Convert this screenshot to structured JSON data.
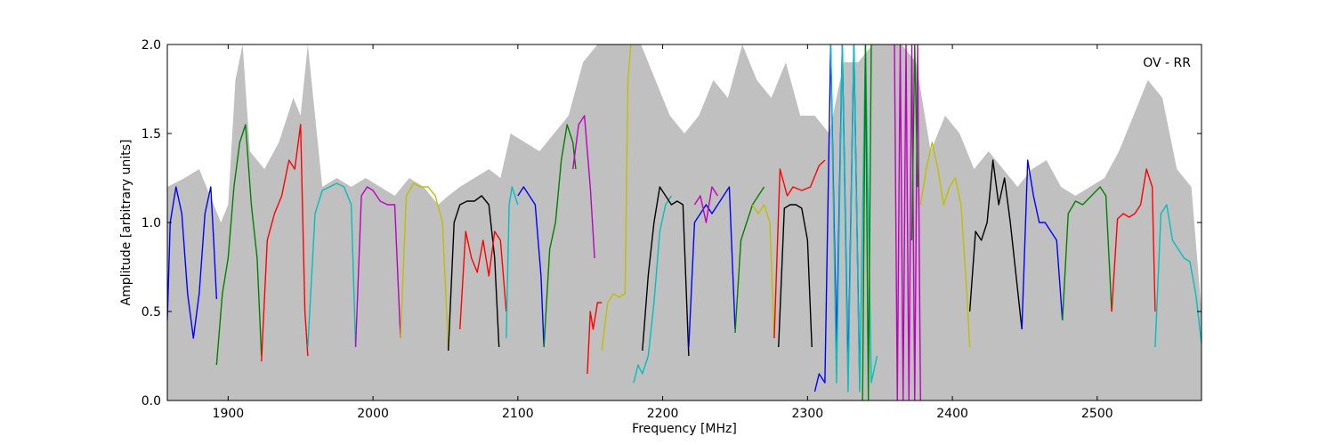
{
  "chart_data": {
    "type": "line",
    "title": "",
    "annotation": "OV - RR",
    "xlabel": "Frequency [MHz]",
    "ylabel": "Amplitude [arbitrary units]",
    "xlim": [
      1858,
      2572
    ],
    "ylim": [
      0.0,
      2.0
    ],
    "x_ticks": [
      1900,
      2000,
      2100,
      2200,
      2300,
      2400,
      2500
    ],
    "x_tick_labels": [
      "1900",
      "2000",
      "2100",
      "2200",
      "2300",
      "2400",
      "2500"
    ],
    "y_ticks": [
      0.0,
      0.5,
      1.0,
      1.5,
      2.0
    ],
    "y_tick_labels": [
      "0.0",
      "0.5",
      "1.0",
      "1.5",
      "2.0"
    ],
    "grid": false,
    "colors": {
      "envelope": "#c0c0c0",
      "blue": "#0000ff",
      "green": "#008000",
      "red": "#ff0000",
      "cyan": "#00bfbf",
      "magenta": "#bf00bf",
      "yellow": "#bfbf00",
      "black": "#000000"
    },
    "envelope": {
      "x": [
        1858,
        1870,
        1880,
        1895,
        1900,
        1905,
        1910,
        1915,
        1925,
        1935,
        1945,
        1950,
        1955,
        1965,
        1975,
        1985,
        1995,
        2005,
        2015,
        2025,
        2035,
        2045,
        2052,
        2060,
        2070,
        2080,
        2088,
        2095,
        2105,
        2115,
        2125,
        2135,
        2145,
        2155,
        2165,
        2175,
        2185,
        2195,
        2205,
        2215,
        2225,
        2235,
        2245,
        2255,
        2265,
        2275,
        2285,
        2295,
        2305,
        2315,
        2325,
        2335,
        2345,
        2355,
        2365,
        2375,
        2385,
        2395,
        2405,
        2415,
        2425,
        2435,
        2445,
        2455,
        2465,
        2475,
        2485,
        2495,
        2505,
        2515,
        2525,
        2535,
        2545,
        2555,
        2565,
        2572
      ],
      "y": [
        1.2,
        1.25,
        1.3,
        1.0,
        1.1,
        1.8,
        2.0,
        1.4,
        1.3,
        1.45,
        1.7,
        1.6,
        2.0,
        1.2,
        1.25,
        1.2,
        1.25,
        1.2,
        1.15,
        1.25,
        1.2,
        1.1,
        1.15,
        1.2,
        1.25,
        1.3,
        1.25,
        1.5,
        1.45,
        1.4,
        1.5,
        1.6,
        1.9,
        2.0,
        2.0,
        2.0,
        2.0,
        1.8,
        1.6,
        1.5,
        1.6,
        1.8,
        1.7,
        2.0,
        1.8,
        1.7,
        1.9,
        1.6,
        1.6,
        1.5,
        1.9,
        1.9,
        2.0,
        2.0,
        2.0,
        1.9,
        1.4,
        1.6,
        1.5,
        1.3,
        1.4,
        1.3,
        1.2,
        1.3,
        1.35,
        1.2,
        1.15,
        1.2,
        1.25,
        1.4,
        1.6,
        1.8,
        1.7,
        1.3,
        1.2,
        0.5
      ]
    },
    "series": [
      {
        "color": "blue",
        "x": [
          1858,
          1860,
          1864,
          1868,
          1872,
          1876,
          1880,
          1884,
          1888,
          1890,
          1892
        ],
        "y": [
          0.45,
          1.0,
          1.2,
          1.05,
          0.6,
          0.35,
          0.6,
          1.05,
          1.2,
          0.9,
          0.57
        ]
      },
      {
        "color": "green",
        "x": [
          1892,
          1896,
          1900,
          1904,
          1908,
          1912,
          1916,
          1920,
          1923
        ],
        "y": [
          0.2,
          0.6,
          0.8,
          1.2,
          1.45,
          1.55,
          1.1,
          0.8,
          0.25
        ]
      },
      {
        "color": "red",
        "x": [
          1923,
          1927,
          1932,
          1937,
          1942,
          1946,
          1950,
          1953,
          1955
        ],
        "y": [
          0.22,
          0.9,
          1.05,
          1.15,
          1.35,
          1.3,
          1.55,
          0.5,
          0.25
        ]
      },
      {
        "color": "cyan",
        "x": [
          1955,
          1960,
          1965,
          1970,
          1975,
          1980,
          1985,
          1988
        ],
        "y": [
          0.3,
          1.05,
          1.18,
          1.2,
          1.22,
          1.2,
          1.1,
          0.3
        ]
      },
      {
        "color": "magenta",
        "x": [
          1988,
          1992,
          1996,
          2000,
          2005,
          2010,
          2015,
          2019
        ],
        "y": [
          0.3,
          1.15,
          1.2,
          1.18,
          1.12,
          1.1,
          1.1,
          0.35
        ]
      },
      {
        "color": "yellow",
        "x": [
          2019,
          2023,
          2028,
          2033,
          2038,
          2043,
          2048,
          2052
        ],
        "y": [
          0.35,
          1.15,
          1.22,
          1.2,
          1.2,
          1.15,
          1.0,
          0.28
        ]
      },
      {
        "color": "black",
        "x": [
          2052,
          2056,
          2060,
          2065,
          2070,
          2075,
          2080,
          2084,
          2087
        ],
        "y": [
          0.28,
          1.0,
          1.1,
          1.12,
          1.12,
          1.15,
          1.1,
          0.8,
          0.3
        ]
      },
      {
        "color": "red",
        "x": [
          2060,
          2064,
          2068,
          2072,
          2076,
          2080,
          2084,
          2088,
          2092
        ],
        "y": [
          0.4,
          0.95,
          0.8,
          0.72,
          0.9,
          0.7,
          0.95,
          0.9,
          0.5
        ]
      },
      {
        "color": "cyan",
        "x": [
          2092,
          2094,
          2096,
          2098,
          2100
        ],
        "y": [
          0.35,
          1.1,
          1.2,
          1.15,
          1.1
        ]
      },
      {
        "color": "blue",
        "x": [
          2100,
          2104,
          2108,
          2112,
          2116,
          2118
        ],
        "y": [
          1.15,
          1.2,
          1.15,
          1.1,
          0.7,
          0.3
        ]
      },
      {
        "color": "green",
        "x": [
          2118,
          2122,
          2126,
          2130,
          2134,
          2138,
          2140
        ],
        "y": [
          0.3,
          0.85,
          1.0,
          1.35,
          1.55,
          1.45,
          1.3
        ]
      },
      {
        "color": "magenta",
        "x": [
          2138,
          2142,
          2146,
          2150,
          2153
        ],
        "y": [
          1.3,
          1.55,
          1.6,
          1.2,
          0.8
        ]
      },
      {
        "color": "red",
        "x": [
          2148,
          2150,
          2152,
          2155,
          2158
        ],
        "y": [
          0.15,
          0.5,
          0.4,
          0.55,
          0.55
        ]
      },
      {
        "color": "yellow",
        "x": [
          2158,
          2162,
          2166,
          2170,
          2174,
          2176,
          2178
        ],
        "y": [
          0.28,
          0.55,
          0.6,
          0.58,
          0.6,
          1.8,
          2.0
        ]
      },
      {
        "color": "cyan",
        "x": [
          2180,
          2183,
          2186,
          2190,
          2194,
          2198,
          2202,
          2206
        ],
        "y": [
          0.1,
          0.2,
          0.15,
          0.25,
          0.55,
          0.95,
          1.1,
          1.15
        ]
      },
      {
        "color": "black",
        "x": [
          2186,
          2190,
          2194,
          2198,
          2202,
          2206,
          2210,
          2214,
          2218
        ],
        "y": [
          0.28,
          0.7,
          1.0,
          1.2,
          1.15,
          1.1,
          1.12,
          1.1,
          0.25
        ]
      },
      {
        "color": "blue",
        "x": [
          2218,
          2222,
          2226,
          2230,
          2234,
          2238,
          2242,
          2246,
          2250
        ],
        "y": [
          0.3,
          1.0,
          1.05,
          1.1,
          1.05,
          1.1,
          1.15,
          1.2,
          0.4
        ]
      },
      {
        "color": "magenta",
        "x": [
          2222,
          2226,
          2230,
          2234,
          2238
        ],
        "y": [
          1.1,
          1.15,
          1.0,
          1.2,
          1.15
        ]
      },
      {
        "color": "green",
        "x": [
          2250,
          2254,
          2258,
          2262,
          2266,
          2270
        ],
        "y": [
          0.38,
          0.9,
          1.0,
          1.1,
          1.15,
          1.2
        ]
      },
      {
        "color": "yellow",
        "x": [
          2262,
          2266,
          2270,
          2274,
          2277
        ],
        "y": [
          1.1,
          1.05,
          1.1,
          1.0,
          0.35
        ]
      },
      {
        "color": "red",
        "x": [
          2277,
          2281,
          2286,
          2290,
          2296,
          2302,
          2308,
          2312
        ],
        "y": [
          0.35,
          1.3,
          1.15,
          1.2,
          1.18,
          1.2,
          1.32,
          1.35
        ]
      },
      {
        "color": "black",
        "x": [
          2280,
          2284,
          2288,
          2292,
          2296,
          2300,
          2303
        ],
        "y": [
          0.3,
          1.08,
          1.1,
          1.1,
          1.08,
          0.9,
          0.3
        ]
      },
      {
        "color": "blue",
        "x": [
          2305,
          2308,
          2312,
          2316,
          2320,
          2324,
          2328,
          2332,
          2336
        ],
        "y": [
          0.05,
          0.15,
          0.1,
          2.0,
          0.3,
          2.0,
          0.15,
          2.0,
          0.1
        ]
      },
      {
        "color": "cyan",
        "x": [
          2316,
          2320,
          2324,
          2328,
          2332,
          2336,
          2340,
          2344,
          2348
        ],
        "y": [
          2.0,
          0.1,
          2.0,
          0.05,
          2.0,
          0.05,
          2.0,
          0.1,
          0.25
        ]
      },
      {
        "color": "green",
        "x": [
          2338,
          2340,
          2342,
          2344
        ],
        "y": [
          0.0,
          2.0,
          0.0,
          2.0
        ]
      },
      {
        "color": "magenta",
        "x": [
          2360,
          2362,
          2364,
          2366,
          2368,
          2370,
          2372,
          2374,
          2376,
          2378
        ],
        "y": [
          2.0,
          0.0,
          2.0,
          0.0,
          2.0,
          0.0,
          2.0,
          0.0,
          2.0,
          0.0
        ]
      },
      {
        "color": "green",
        "x": [
          2372,
          2374,
          2376
        ],
        "y": [
          0.9,
          2.0,
          1.2
        ]
      },
      {
        "color": "yellow",
        "x": [
          2378,
          2382,
          2386,
          2390,
          2394,
          2398,
          2402,
          2406,
          2410,
          2412
        ],
        "y": [
          1.1,
          1.3,
          1.45,
          1.3,
          1.1,
          1.2,
          1.25,
          1.1,
          0.6,
          0.3
        ]
      },
      {
        "color": "black",
        "x": [
          2412,
          2416,
          2420,
          2424,
          2428,
          2432,
          2436,
          2440,
          2444,
          2448
        ],
        "y": [
          0.5,
          0.95,
          0.9,
          1.0,
          1.35,
          1.1,
          1.25,
          1.0,
          0.7,
          0.4
        ]
      },
      {
        "color": "blue",
        "x": [
          2448,
          2452,
          2456,
          2460,
          2464,
          2468,
          2472,
          2476
        ],
        "y": [
          0.4,
          1.35,
          1.15,
          1.0,
          1.0,
          0.95,
          0.9,
          0.45
        ]
      },
      {
        "color": "green",
        "x": [
          2476,
          2480,
          2485,
          2490,
          2496,
          2502,
          2506,
          2510
        ],
        "y": [
          0.45,
          1.05,
          1.12,
          1.1,
          1.15,
          1.2,
          1.15,
          0.5
        ]
      },
      {
        "color": "red",
        "x": [
          2510,
          2514,
          2518,
          2522,
          2526,
          2530,
          2534,
          2538,
          2540
        ],
        "y": [
          0.5,
          1.02,
          1.05,
          1.03,
          1.05,
          1.1,
          1.3,
          1.2,
          0.5
        ]
      },
      {
        "color": "cyan",
        "x": [
          2540,
          2544,
          2548,
          2552,
          2556,
          2560,
          2564,
          2568,
          2572
        ],
        "y": [
          0.3,
          1.05,
          1.1,
          0.9,
          0.85,
          0.8,
          0.78,
          0.6,
          0.32
        ]
      }
    ]
  }
}
